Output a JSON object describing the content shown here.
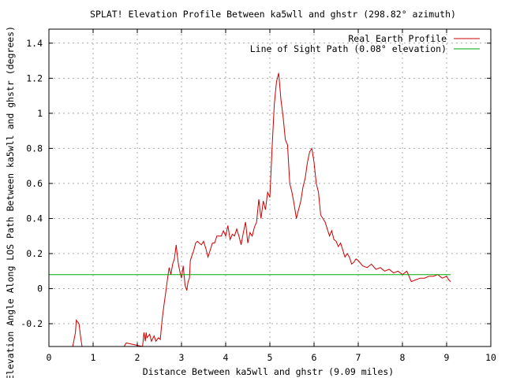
{
  "chart_data": {
    "type": "line",
    "title": "SPLAT! Elevation Profile Between ka5wll and ghstr (298.82° azimuth)",
    "xlabel": "Distance Between ka5wll and ghstr (9.09 miles)",
    "ylabel": "Elevation Angle Along LOS Path Between ka5wll and ghstr (degrees)",
    "xlim": [
      0,
      10
    ],
    "ylim": [
      -0.33,
      1.48
    ],
    "x_ticks": [
      "0",
      "1",
      "2",
      "3",
      "4",
      "5",
      "6",
      "7",
      "8",
      "9",
      "10"
    ],
    "y_ticks": [
      "-0.2",
      "0",
      "0.2",
      "0.4",
      "0.6",
      "0.8",
      "1",
      "1.2",
      "1.4"
    ],
    "grid": true,
    "legend_position": "top-right",
    "series": [
      {
        "name": "Real Earth Profile",
        "color": "#cc0000",
        "x": [
          0.54,
          0.6,
          0.62,
          0.68,
          0.72,
          0.75,
          1.7,
          1.75,
          2.12,
          2.15,
          2.18,
          2.2,
          2.22,
          2.28,
          2.32,
          2.38,
          2.42,
          2.48,
          2.52,
          2.56,
          2.6,
          2.64,
          2.68,
          2.72,
          2.76,
          2.8,
          2.84,
          2.88,
          2.9,
          2.93,
          2.96,
          3.0,
          3.04,
          3.08,
          3.12,
          3.15,
          3.18,
          3.2,
          3.24,
          3.28,
          3.32,
          3.36,
          3.4,
          3.45,
          3.5,
          3.55,
          3.6,
          3.65,
          3.7,
          3.75,
          3.8,
          3.85,
          3.9,
          3.95,
          4.0,
          4.05,
          4.1,
          4.15,
          4.2,
          4.25,
          4.3,
          4.35,
          4.4,
          4.45,
          4.5,
          4.55,
          4.6,
          4.65,
          4.7,
          4.75,
          4.8,
          4.85,
          4.9,
          4.95,
          5.0,
          5.05,
          5.1,
          5.15,
          5.2,
          5.25,
          5.3,
          5.35,
          5.4,
          5.45,
          5.5,
          5.55,
          5.6,
          5.65,
          5.7,
          5.75,
          5.8,
          5.85,
          5.9,
          5.95,
          6.0,
          6.05,
          6.1,
          6.15,
          6.2,
          6.25,
          6.3,
          6.35,
          6.4,
          6.45,
          6.5,
          6.55,
          6.6,
          6.65,
          6.7,
          6.75,
          6.8,
          6.85,
          6.9,
          6.95,
          7.0,
          7.1,
          7.2,
          7.3,
          7.4,
          7.5,
          7.6,
          7.7,
          7.8,
          7.9,
          8.0,
          8.1,
          8.15,
          8.2,
          8.3,
          8.4,
          8.5,
          8.6,
          8.7,
          8.8,
          8.9,
          9.0,
          9.05,
          9.09
        ],
        "y": [
          -0.33,
          -0.25,
          -0.18,
          -0.2,
          -0.28,
          -0.33,
          -0.33,
          -0.31,
          -0.33,
          -0.25,
          -0.3,
          -0.25,
          -0.28,
          -0.26,
          -0.3,
          -0.27,
          -0.3,
          -0.28,
          -0.29,
          -0.18,
          -0.1,
          -0.03,
          0.05,
          0.12,
          0.08,
          0.14,
          0.17,
          0.25,
          0.2,
          0.14,
          0.1,
          0.06,
          0.13,
          0.02,
          -0.01,
          0.04,
          0.06,
          0.16,
          0.19,
          0.22,
          0.26,
          0.27,
          0.26,
          0.25,
          0.27,
          0.23,
          0.18,
          0.22,
          0.26,
          0.26,
          0.3,
          0.3,
          0.3,
          0.33,
          0.3,
          0.36,
          0.28,
          0.31,
          0.3,
          0.34,
          0.3,
          0.25,
          0.32,
          0.38,
          0.26,
          0.32,
          0.3,
          0.35,
          0.38,
          0.51,
          0.4,
          0.5,
          0.45,
          0.55,
          0.52,
          0.8,
          1.05,
          1.18,
          1.23,
          1.08,
          0.98,
          0.85,
          0.82,
          0.6,
          0.55,
          0.48,
          0.4,
          0.45,
          0.5,
          0.58,
          0.63,
          0.72,
          0.78,
          0.8,
          0.72,
          0.6,
          0.55,
          0.42,
          0.4,
          0.38,
          0.34,
          0.3,
          0.33,
          0.28,
          0.27,
          0.24,
          0.26,
          0.22,
          0.18,
          0.2,
          0.18,
          0.14,
          0.15,
          0.17,
          0.16,
          0.13,
          0.12,
          0.14,
          0.11,
          0.12,
          0.1,
          0.11,
          0.09,
          0.1,
          0.08,
          0.1,
          0.07,
          0.04,
          0.05,
          0.06,
          0.06,
          0.07,
          0.07,
          0.08,
          0.06,
          0.07,
          0.05,
          0.04
        ]
      },
      {
        "name": "Line of Sight Path (0.08° elevation)",
        "color": "#00aa00",
        "x": [
          0,
          9.09
        ],
        "y": [
          0.08,
          0.08
        ]
      }
    ]
  }
}
